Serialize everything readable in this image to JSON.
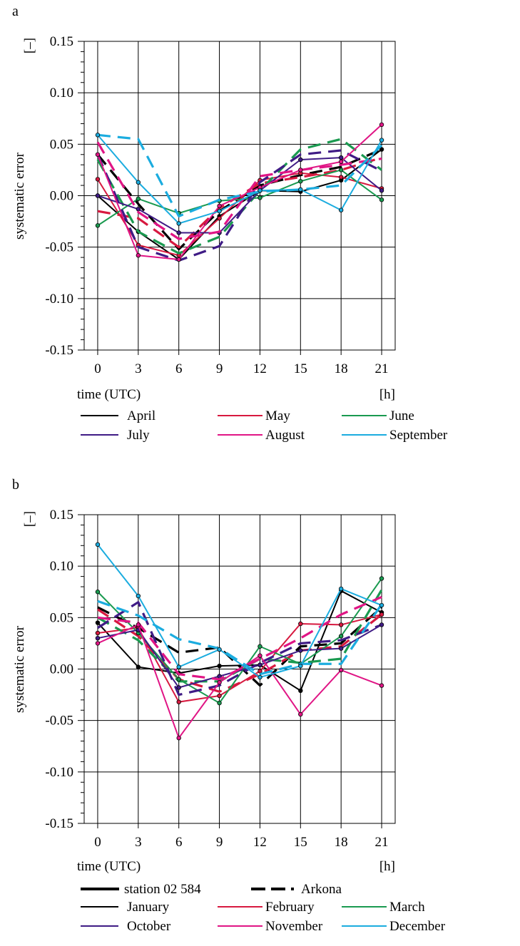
{
  "chart_data": [
    {
      "type": "line",
      "panel_label": "a",
      "unit_label": "[–]",
      "ylabel": "systematic error",
      "xlabel": "time (UTC)",
      "x_unit": "[h]",
      "x": [
        0,
        3,
        6,
        9,
        12,
        15,
        18,
        21
      ],
      "xlim": [
        -1,
        22
      ],
      "ylim": [
        -0.15,
        0.15
      ],
      "y_ticks": [
        "0.15",
        "0.10",
        "0.05",
        "0.00",
        "-0.05",
        "-0.10",
        "-0.15"
      ],
      "grid": true,
      "legend_rows": [
        [
          "April",
          "May",
          "June"
        ],
        [
          "July",
          "August",
          "September"
        ]
      ],
      "series": [
        {
          "name": "April",
          "color": "#000000",
          "station_values": [
            0.0,
            -0.035,
            -0.062,
            -0.02,
            0.005,
            0.004,
            0.015,
            0.045
          ],
          "arkona_values": [
            0.04,
            -0.008,
            -0.052,
            -0.015,
            0.01,
            0.02,
            0.028,
            0.045
          ]
        },
        {
          "name": "May",
          "color": "#d7193f",
          "station_values": [
            0.016,
            -0.048,
            -0.058,
            -0.022,
            0.015,
            0.022,
            0.018,
            0.007
          ],
          "arkona_values": [
            -0.015,
            -0.022,
            -0.05,
            -0.012,
            0.012,
            0.018,
            0.025,
            0.037
          ]
        },
        {
          "name": "June",
          "color": "#1a9a50",
          "station_values": [
            -0.029,
            -0.003,
            -0.017,
            -0.005,
            -0.002,
            0.014,
            0.025,
            -0.004
          ],
          "arkona_values": [
            0.035,
            -0.035,
            -0.056,
            -0.04,
            0.005,
            0.045,
            0.055,
            0.025
          ]
        },
        {
          "name": "July",
          "color": "#3f1b85",
          "station_values": [
            0.0,
            -0.013,
            -0.036,
            -0.036,
            0.005,
            0.035,
            0.037,
            0.005
          ],
          "arkona_values": [
            0.04,
            -0.05,
            -0.063,
            -0.049,
            0.013,
            0.04,
            0.044,
            0.024
          ]
        },
        {
          "name": "August",
          "color": "#e01585",
          "station_values": [
            0.04,
            -0.058,
            -0.062,
            -0.01,
            0.008,
            0.025,
            0.033,
            0.069
          ],
          "arkona_values": [
            0.052,
            -0.016,
            -0.042,
            -0.035,
            0.019,
            0.025,
            0.03,
            0.036
          ]
        },
        {
          "name": "September",
          "color": "#1bacdf",
          "station_values": [
            0.059,
            0.013,
            -0.027,
            -0.015,
            0.005,
            0.006,
            -0.014,
            0.054
          ],
          "arkona_values": [
            0.059,
            0.055,
            -0.02,
            -0.004,
            0.004,
            0.006,
            0.01,
            0.049
          ]
        }
      ]
    },
    {
      "type": "line",
      "panel_label": "b",
      "unit_label": "[–]",
      "ylabel": "systematic error",
      "xlabel": "time (UTC)",
      "x_unit": "[h]",
      "x": [
        0,
        3,
        6,
        9,
        12,
        15,
        18,
        21
      ],
      "xlim": [
        -1,
        22
      ],
      "ylim": [
        -0.15,
        0.15
      ],
      "y_ticks": [
        "0.15",
        "0.10",
        "0.05",
        "0.00",
        "-0.05",
        "-0.10",
        "-0.15"
      ],
      "grid": true,
      "line_style_legend": [
        "station 02 584",
        "Arkona"
      ],
      "legend_rows": [
        [
          "January",
          "February",
          "March"
        ],
        [
          "October",
          "November",
          "December"
        ]
      ],
      "series": [
        {
          "name": "January",
          "color": "#000000",
          "station_values": [
            0.045,
            0.002,
            -0.004,
            0.003,
            0.004,
            -0.021,
            0.076,
            0.055
          ],
          "arkona_values": [
            0.06,
            0.04,
            0.016,
            0.021,
            -0.016,
            0.022,
            0.025,
            0.06
          ]
        },
        {
          "name": "February",
          "color": "#d7193f",
          "station_values": [
            0.035,
            0.04,
            -0.032,
            -0.026,
            -0.002,
            0.044,
            0.043,
            0.053
          ],
          "arkona_values": [
            0.058,
            0.032,
            -0.01,
            -0.022,
            -0.005,
            0.018,
            0.022,
            0.053
          ]
        },
        {
          "name": "March",
          "color": "#1a9a50",
          "station_values": [
            0.075,
            0.035,
            -0.01,
            -0.033,
            0.022,
            0.005,
            0.032,
            0.088
          ],
          "arkona_values": [
            0.05,
            0.028,
            -0.012,
            -0.012,
            0.01,
            0.006,
            0.01,
            0.077
          ]
        },
        {
          "name": "October",
          "color": "#3f1b85",
          "station_values": [
            0.03,
            0.038,
            -0.018,
            -0.007,
            0.004,
            0.018,
            0.02,
            0.043
          ],
          "arkona_values": [
            0.04,
            0.065,
            -0.025,
            -0.016,
            0.006,
            0.025,
            0.028,
            0.043
          ]
        },
        {
          "name": "November",
          "color": "#e01585",
          "station_values": [
            0.025,
            0.043,
            -0.067,
            -0.013,
            0.013,
            -0.044,
            -0.001,
            -0.016
          ],
          "arkona_values": [
            0.05,
            0.045,
            -0.005,
            -0.01,
            0.01,
            0.03,
            0.053,
            0.07
          ]
        },
        {
          "name": "December",
          "color": "#1bacdf",
          "station_values": [
            0.121,
            0.071,
            0.002,
            0.019,
            -0.008,
            0.003,
            0.078,
            0.062
          ],
          "arkona_values": [
            0.066,
            0.052,
            0.029,
            0.02,
            -0.005,
            0.005,
            0.005,
            0.063
          ]
        }
      ]
    }
  ]
}
